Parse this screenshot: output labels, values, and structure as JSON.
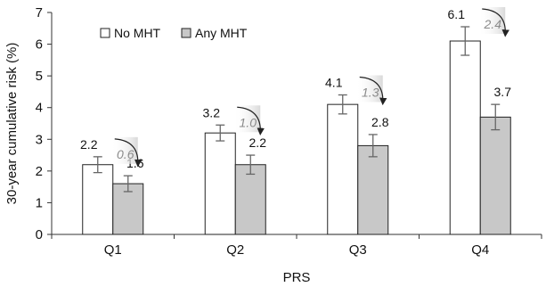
{
  "chart_data": {
    "type": "bar",
    "title": "",
    "xlabel": "PRS",
    "ylabel": "30-year cumulative risk (%)",
    "ylim": [
      0,
      7
    ],
    "yticks": [
      0,
      1,
      2,
      3,
      4,
      5,
      6,
      7
    ],
    "categories": [
      "Q1",
      "Q2",
      "Q3",
      "Q4"
    ],
    "legend_position": "top-left",
    "grid": false,
    "series": [
      {
        "name": "No MHT",
        "color": "#ffffff",
        "values": [
          2.2,
          3.2,
          4.1,
          6.1
        ],
        "labels": [
          "2.2",
          "3.2",
          "4.1",
          "6.1"
        ],
        "error_low": [
          1.95,
          2.95,
          3.8,
          5.65
        ],
        "error_high": [
          2.45,
          3.45,
          4.4,
          6.55
        ]
      },
      {
        "name": "Any MHT",
        "color": "#c8c8c8",
        "values": [
          1.6,
          2.2,
          2.8,
          3.7
        ],
        "labels": [
          "1.6",
          "2.2",
          "2.8",
          "3.7"
        ],
        "error_low": [
          1.35,
          1.9,
          2.45,
          3.3
        ],
        "error_high": [
          1.85,
          2.5,
          3.15,
          4.1
        ]
      }
    ],
    "annotations": [
      {
        "category": "Q1",
        "text": "0.6"
      },
      {
        "category": "Q2",
        "text": "1.0"
      },
      {
        "category": "Q3",
        "text": "1.3"
      },
      {
        "category": "Q4",
        "text": "2.4"
      }
    ]
  }
}
